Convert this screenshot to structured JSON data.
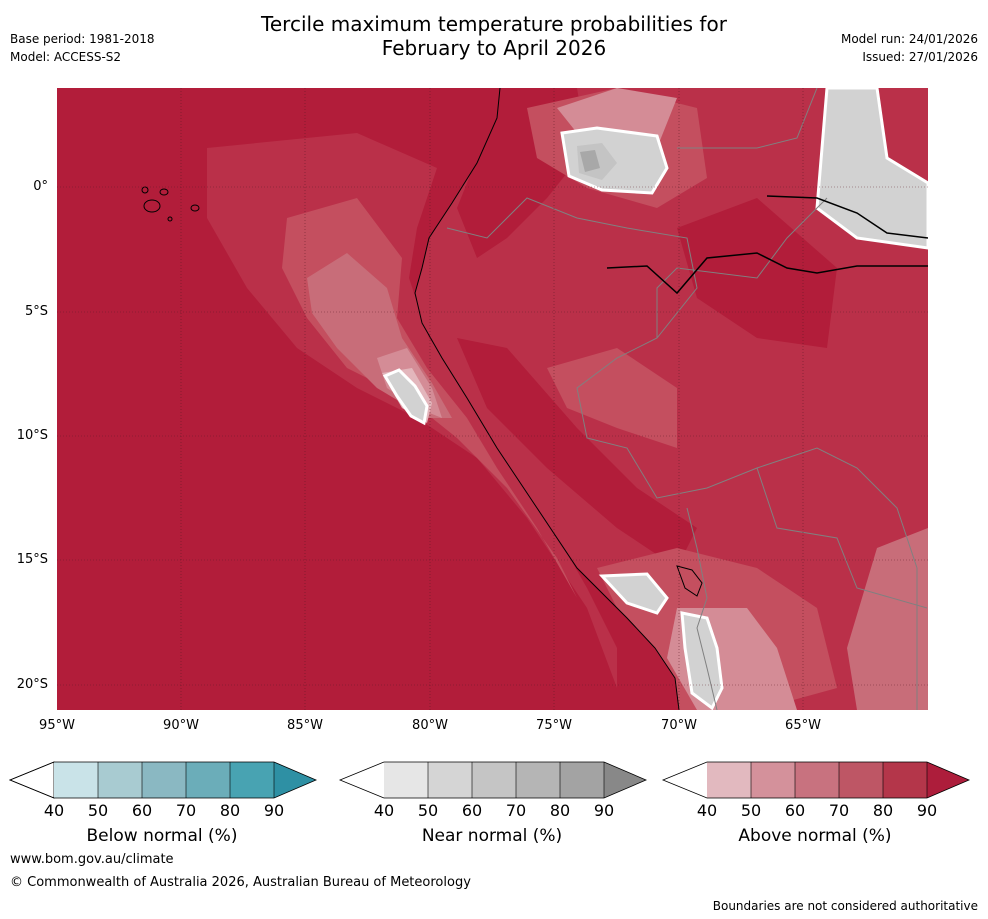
{
  "title": {
    "line1": "Tercile maximum temperature probabilities for",
    "line2": "February to April 2026"
  },
  "meta": {
    "base_period": "Base period: 1981-2018",
    "model": "Model: ACCESS-S2",
    "model_run": "Model run: 24/01/2026",
    "issued": "Issued: 27/01/2026"
  },
  "axes": {
    "lat_labels": [
      "0°",
      "5°S",
      "10°S",
      "15°S",
      "20°S"
    ],
    "lon_labels": [
      "95°W",
      "90°W",
      "85°W",
      "80°W",
      "75°W",
      "70°W",
      "65°W"
    ]
  },
  "colorbars": [
    {
      "name": "below",
      "title": "Below normal (%)",
      "ticks": [
        "40",
        "50",
        "60",
        "70",
        "80",
        "90"
      ],
      "colors": [
        "#c9e3e8",
        "#a8cbd1",
        "#8ab8c2",
        "#6badb9",
        "#48a3b2",
        "#2e90a4"
      ]
    },
    {
      "name": "near",
      "title": "Near normal (%)",
      "ticks": [
        "40",
        "50",
        "60",
        "70",
        "80",
        "90"
      ],
      "colors": [
        "#e6e6e6",
        "#d5d5d5",
        "#c5c5c5",
        "#b5b5b5",
        "#a3a3a3",
        "#888888"
      ]
    },
    {
      "name": "above",
      "title": "Above normal (%)",
      "ticks": [
        "40",
        "50",
        "60",
        "70",
        "80",
        "90"
      ],
      "colors": [
        "#e2b9bf",
        "#d4919b",
        "#c8727f",
        "#be5665",
        "#b4364a",
        "#ad1d3b"
      ]
    }
  ],
  "footer": {
    "url": "www.bom.gov.au/climate",
    "copyright": "© Commonwealth of Australia 2026, Australian Bureau of Meteorology",
    "disclaimer": "Boundaries are not considered authoritative"
  },
  "map_colors": {
    "above_90": "#b21d3a",
    "above_80": "#ba3049",
    "above_70": "#c44f5f",
    "above_60": "#c86d79",
    "above_50": "#d48c96",
    "above_40": "#e3b6bc",
    "near_50": "#d2d2d2",
    "near_60": "#c4c4c4",
    "near_70": "#a8a8a8"
  }
}
